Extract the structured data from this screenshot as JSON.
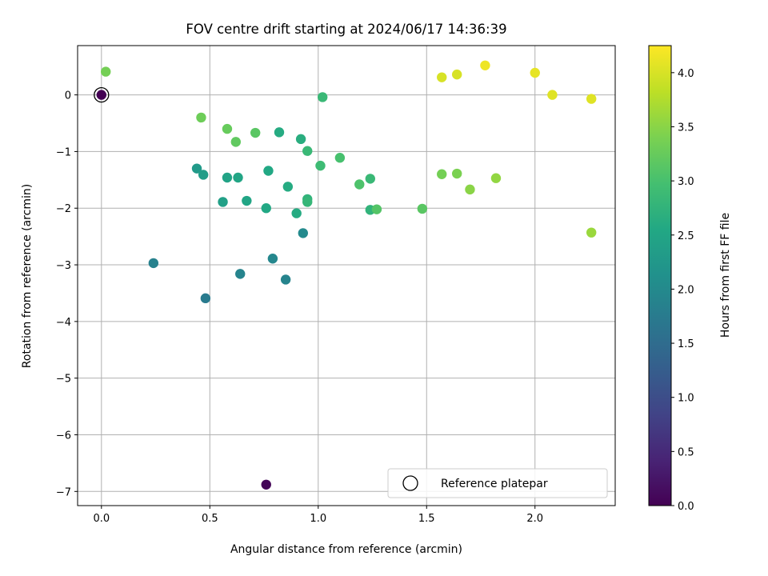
{
  "chart_data": {
    "type": "scatter",
    "title": "FOV centre drift starting at 2024/06/17 14:36:39",
    "xlabel": "Angular distance from reference (arcmin)",
    "ylabel": "Rotation from reference (arcmin)",
    "xlim": [
      -0.11,
      2.37
    ],
    "ylim": [
      -7.25,
      0.87
    ],
    "xticks": [
      0.0,
      0.5,
      1.0,
      1.5,
      2.0
    ],
    "xtick_labels": [
      "0.0",
      "0.5",
      "1.0",
      "1.5",
      "2.0"
    ],
    "yticks": [
      0,
      -1,
      -2,
      -3,
      -4,
      -5,
      -6,
      -7
    ],
    "ytick_labels": [
      "0",
      "−1",
      "−2",
      "−3",
      "−4",
      "−5",
      "−6",
      "−7"
    ],
    "grid": true,
    "colormap": "viridis",
    "colorbar": {
      "label": "Hours from first FF file",
      "range": [
        0.0,
        4.25
      ],
      "ticks": [
        0.0,
        0.5,
        1.0,
        1.5,
        2.0,
        2.5,
        3.0,
        3.5,
        4.0
      ],
      "tick_labels": [
        "0.0",
        "0.5",
        "1.0",
        "1.5",
        "2.0",
        "2.5",
        "3.0",
        "3.5",
        "4.0"
      ]
    },
    "legend": {
      "placement": "lower-right",
      "entries": [
        "Reference platepar"
      ]
    },
    "reference_point": {
      "x": 0.0,
      "y": 0.0
    },
    "points": [
      {
        "x": 0.0,
        "y": 0.0,
        "hours": 0.0
      },
      {
        "x": 0.76,
        "y": -6.88,
        "hours": 0.05
      },
      {
        "x": 0.48,
        "y": -3.59,
        "hours": 1.75
      },
      {
        "x": 0.24,
        "y": -2.97,
        "hours": 1.85
      },
      {
        "x": 0.64,
        "y": -3.16,
        "hours": 1.9
      },
      {
        "x": 0.85,
        "y": -3.26,
        "hours": 1.9
      },
      {
        "x": 0.79,
        "y": -2.89,
        "hours": 1.95
      },
      {
        "x": 0.93,
        "y": -2.44,
        "hours": 2.0
      },
      {
        "x": 0.44,
        "y": -1.3,
        "hours": 2.3
      },
      {
        "x": 0.47,
        "y": -1.41,
        "hours": 2.35
      },
      {
        "x": 0.56,
        "y": -1.89,
        "hours": 2.4
      },
      {
        "x": 0.58,
        "y": -1.46,
        "hours": 2.45
      },
      {
        "x": 0.63,
        "y": -1.46,
        "hours": 2.5
      },
      {
        "x": 0.67,
        "y": -1.87,
        "hours": 2.5
      },
      {
        "x": 0.77,
        "y": -1.34,
        "hours": 2.55
      },
      {
        "x": 0.76,
        "y": -2.0,
        "hours": 2.55
      },
      {
        "x": 0.82,
        "y": -0.66,
        "hours": 2.6
      },
      {
        "x": 0.86,
        "y": -1.62,
        "hours": 2.6
      },
      {
        "x": 0.9,
        "y": -2.09,
        "hours": 2.6
      },
      {
        "x": 0.92,
        "y": -0.78,
        "hours": 2.65
      },
      {
        "x": 0.95,
        "y": -1.84,
        "hours": 2.75
      },
      {
        "x": 0.95,
        "y": -1.89,
        "hours": 2.8
      },
      {
        "x": 0.95,
        "y": -0.99,
        "hours": 2.85
      },
      {
        "x": 1.02,
        "y": -0.04,
        "hours": 2.85
      },
      {
        "x": 1.01,
        "y": -1.25,
        "hours": 2.9
      },
      {
        "x": 1.24,
        "y": -2.03,
        "hours": 2.75
      },
      {
        "x": 1.24,
        "y": -1.48,
        "hours": 2.85
      },
      {
        "x": 1.1,
        "y": -1.11,
        "hours": 3.0
      },
      {
        "x": 1.19,
        "y": -1.58,
        "hours": 3.05
      },
      {
        "x": 1.27,
        "y": -2.02,
        "hours": 3.1
      },
      {
        "x": 1.48,
        "y": -2.01,
        "hours": 3.15
      },
      {
        "x": 0.71,
        "y": -0.67,
        "hours": 3.15
      },
      {
        "x": 0.62,
        "y": -0.83,
        "hours": 3.2
      },
      {
        "x": 0.58,
        "y": -0.6,
        "hours": 3.25
      },
      {
        "x": 0.46,
        "y": -0.4,
        "hours": 3.3
      },
      {
        "x": 0.02,
        "y": 0.41,
        "hours": 3.35
      },
      {
        "x": 1.57,
        "y": -1.4,
        "hours": 3.35
      },
      {
        "x": 1.64,
        "y": -1.39,
        "hours": 3.4
      },
      {
        "x": 1.7,
        "y": -1.67,
        "hours": 3.5
      },
      {
        "x": 1.82,
        "y": -1.47,
        "hours": 3.55
      },
      {
        "x": 2.26,
        "y": -2.43,
        "hours": 3.6
      },
      {
        "x": 1.57,
        "y": 0.31,
        "hours": 4.0
      },
      {
        "x": 1.64,
        "y": 0.36,
        "hours": 4.0
      },
      {
        "x": 1.77,
        "y": 0.52,
        "hours": 4.15
      },
      {
        "x": 2.0,
        "y": 0.39,
        "hours": 4.1
      },
      {
        "x": 2.08,
        "y": 0.0,
        "hours": 4.05
      },
      {
        "x": 2.26,
        "y": -0.07,
        "hours": 4.05
      }
    ]
  }
}
